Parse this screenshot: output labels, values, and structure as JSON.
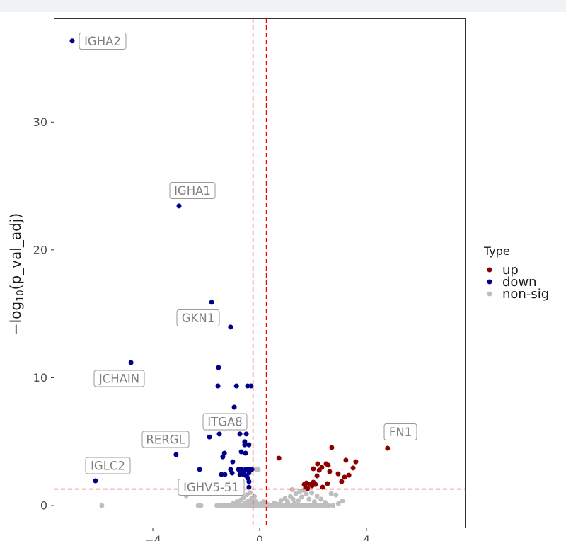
{
  "chart_data": {
    "type": "scatter",
    "title": "",
    "xlabel": "",
    "ylabel": {
      "prefix": "−log",
      "sub": "10",
      "suffix": "(p_val_adj)"
    },
    "xlim": [
      -7.71,
      7.71
    ],
    "ylim": [
      -1.77,
      38.1
    ],
    "x_ticks": [
      -4,
      0,
      4
    ],
    "x_tick_labels": [
      "−4",
      "0",
      "4"
    ],
    "y_ticks": [
      0,
      10,
      20,
      30
    ],
    "y_tick_labels": [
      "0",
      "10",
      "20",
      "30"
    ],
    "grid": false,
    "legend_position": "right",
    "thresholds": {
      "x": [
        -0.25,
        0.25
      ],
      "y": 1.301
    },
    "colors": {
      "up": "#8B0000",
      "down": "#00008B",
      "non_sig": "#BEBEBE",
      "threshold": "#FF0000",
      "label_text": "#7f7f7f",
      "label_border": "#9a9a9a"
    },
    "legend": {
      "title": "Type",
      "entries": [
        "up",
        "down",
        "non-sig"
      ]
    },
    "labels": [
      "IGHA2",
      "IGHA1",
      "GKN1",
      "JCHAIN",
      "ITGA8",
      "RERGL",
      "IGLC2",
      "IGHV5-51",
      "FN1"
    ],
    "series": [
      {
        "name": "non-sig",
        "color_key": "non_sig",
        "points": [
          [
            -5.91,
            0
          ],
          [
            -2.75,
            0.78
          ],
          [
            -2.3,
            0
          ],
          [
            -2.2,
            0
          ],
          [
            -1.6,
            0
          ],
          [
            -1.5,
            0
          ],
          [
            -1.4,
            0
          ],
          [
            -1.3,
            0
          ],
          [
            -1.2,
            0
          ],
          [
            -1.1,
            0
          ],
          [
            -1.0,
            0
          ],
          [
            -0.9,
            0
          ],
          [
            -0.8,
            0
          ],
          [
            -0.7,
            0
          ],
          [
            -0.6,
            0
          ],
          [
            -0.5,
            0
          ],
          [
            -0.4,
            0
          ],
          [
            -0.3,
            0
          ],
          [
            -0.2,
            0
          ],
          [
            -0.1,
            0
          ],
          [
            0.0,
            0
          ],
          [
            0.1,
            0
          ],
          [
            0.2,
            0
          ],
          [
            0.3,
            0
          ],
          [
            0.4,
            0
          ],
          [
            0.5,
            0
          ],
          [
            0.6,
            0
          ],
          [
            0.7,
            0
          ],
          [
            0.8,
            0
          ],
          [
            0.9,
            0
          ],
          [
            1.0,
            0
          ],
          [
            1.1,
            0
          ],
          [
            1.2,
            0
          ],
          [
            1.3,
            0
          ],
          [
            1.4,
            0
          ],
          [
            1.5,
            0
          ],
          [
            1.6,
            0
          ],
          [
            1.7,
            0
          ],
          [
            1.8,
            0
          ],
          [
            1.9,
            0
          ],
          [
            2.0,
            0
          ],
          [
            2.1,
            0
          ],
          [
            2.2,
            0
          ],
          [
            2.3,
            0
          ],
          [
            2.4,
            0
          ],
          [
            2.5,
            0
          ],
          [
            2.6,
            0
          ],
          [
            2.75,
            0
          ],
          [
            -1.0,
            0.15
          ],
          [
            -0.85,
            0.3
          ],
          [
            -0.75,
            0.12
          ],
          [
            -0.7,
            0.45
          ],
          [
            -0.6,
            0.62
          ],
          [
            -0.55,
            0.22
          ],
          [
            -0.48,
            0.85
          ],
          [
            -0.42,
            0.35
          ],
          [
            -0.36,
            1.02
          ],
          [
            -0.3,
            0.55
          ],
          [
            -0.26,
            0.18
          ],
          [
            -0.2,
            0.72
          ],
          [
            -0.15,
            0.32
          ],
          [
            -0.08,
            0.12
          ],
          [
            0.05,
            0.16
          ],
          [
            0.15,
            0.3
          ],
          [
            0.28,
            0.12
          ],
          [
            0.55,
            0.2
          ],
          [
            0.7,
            0.1
          ],
          [
            0.8,
            0.4
          ],
          [
            0.95,
            0.55
          ],
          [
            1.05,
            0.3
          ],
          [
            1.15,
            0.72
          ],
          [
            1.22,
            1.25
          ],
          [
            1.25,
            0.5
          ],
          [
            1.3,
            0.15
          ],
          [
            1.35,
            0.92
          ],
          [
            1.45,
            0.4
          ],
          [
            1.5,
            1.1
          ],
          [
            1.58,
            0.68
          ],
          [
            1.65,
            1.2
          ],
          [
            1.75,
            0.9
          ],
          [
            1.85,
            0.5
          ],
          [
            1.95,
            1.0
          ],
          [
            2.05,
            0.3
          ],
          [
            2.15,
            0.75
          ],
          [
            2.3,
            0.5
          ],
          [
            2.45,
            0.25
          ],
          [
            2.68,
            0.94
          ],
          [
            2.86,
            0.83
          ],
          [
            2.95,
            0.15
          ],
          [
            3.1,
            0.35
          ],
          [
            -0.13,
            2.85
          ],
          [
            -0.05,
            2.82
          ]
        ]
      },
      {
        "name": "down",
        "color_key": "down",
        "points": [
          [
            -7.02,
            36.34
          ],
          [
            -3.02,
            23.43
          ],
          [
            -1.8,
            15.9
          ],
          [
            -1.09,
            13.96
          ],
          [
            -4.82,
            11.19
          ],
          [
            -1.54,
            10.8
          ],
          [
            -1.56,
            9.36
          ],
          [
            -0.87,
            9.36
          ],
          [
            -0.45,
            9.36
          ],
          [
            -0.32,
            9.36
          ],
          [
            -0.95,
            7.7
          ],
          [
            -1.88,
            5.37
          ],
          [
            -1.51,
            5.6
          ],
          [
            -0.74,
            5.6
          ],
          [
            -0.5,
            5.6
          ],
          [
            -0.56,
            4.99
          ],
          [
            -0.56,
            4.76
          ],
          [
            -0.4,
            4.76
          ],
          [
            -0.69,
            4.21
          ],
          [
            -1.32,
            4.1
          ],
          [
            -0.53,
            4.1
          ],
          [
            -3.13,
            3.99
          ],
          [
            -1.01,
            3.43
          ],
          [
            -1.38,
            3.82
          ],
          [
            -2.25,
            2.83
          ],
          [
            -1.43,
            2.44
          ],
          [
            -1.3,
            2.44
          ],
          [
            -1.09,
            2.83
          ],
          [
            -0.79,
            2.83
          ],
          [
            -0.69,
            2.83
          ],
          [
            -0.61,
            2.66
          ],
          [
            -0.53,
            2.83
          ],
          [
            -0.45,
            2.83
          ],
          [
            -0.37,
            2.83
          ],
          [
            -0.29,
            2.83
          ],
          [
            -0.74,
            2.44
          ],
          [
            -0.61,
            2.44
          ],
          [
            -0.5,
            2.33
          ],
          [
            -0.4,
            2.55
          ],
          [
            -0.45,
            2.16
          ],
          [
            -0.4,
            1.88
          ],
          [
            -0.4,
            1.44
          ],
          [
            -6.15,
            1.94
          ],
          [
            -1.03,
            2.55
          ]
        ]
      },
      {
        "name": "up",
        "color_key": "up",
        "points": [
          [
            0.72,
            3.71
          ],
          [
            4.79,
            4.49
          ],
          [
            2.7,
            4.54
          ],
          [
            3.6,
            3.43
          ],
          [
            3.23,
            3.55
          ],
          [
            2.33,
            2.99
          ],
          [
            2.57,
            3.16
          ],
          [
            2.01,
            2.88
          ],
          [
            2.17,
            3.27
          ],
          [
            2.49,
            3.27
          ],
          [
            2.23,
            2.77
          ],
          [
            2.62,
            2.66
          ],
          [
            2.94,
            2.49
          ],
          [
            3.5,
            2.94
          ],
          [
            3.34,
            2.38
          ],
          [
            3.18,
            2.22
          ],
          [
            3.07,
            1.88
          ],
          [
            2.15,
            2.33
          ],
          [
            2.54,
            1.72
          ],
          [
            2.36,
            1.44
          ],
          [
            2.01,
            1.83
          ],
          [
            1.96,
            1.55
          ],
          [
            2.09,
            1.66
          ],
          [
            1.67,
            1.66
          ],
          [
            1.72,
            1.44
          ],
          [
            1.8,
            1.33
          ],
          [
            1.88,
            1.66
          ],
          [
            1.75,
            1.77
          ]
        ]
      }
    ]
  }
}
